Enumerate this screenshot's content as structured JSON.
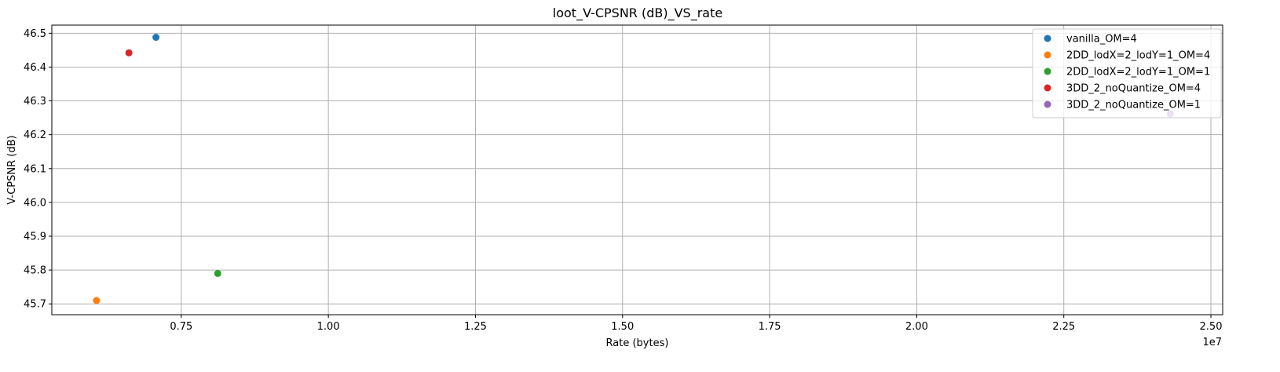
{
  "chart_data": {
    "type": "scatter",
    "title": "loot_V-CPSNR (dB)_VS_rate",
    "xlabel": "Rate (bytes)",
    "ylabel": "V-CPSNR (dB)",
    "x_offset_label": "1e7",
    "x_scale": 10000000,
    "xlim": [
      5300000,
      25200000
    ],
    "ylim": [
      45.668,
      46.524
    ],
    "x_ticks": [
      0.75,
      1.0,
      1.25,
      1.5,
      1.75,
      2.0,
      2.25,
      2.5
    ],
    "x_tick_labels": [
      "0.75",
      "1.00",
      "1.25",
      "1.50",
      "1.75",
      "2.00",
      "2.25",
      "2.50"
    ],
    "y_ticks": [
      45.7,
      45.8,
      45.9,
      46.0,
      46.1,
      46.2,
      46.3,
      46.4,
      46.5
    ],
    "y_tick_labels": [
      "45.7",
      "45.8",
      "45.9",
      "46.0",
      "46.1",
      "46.2",
      "46.3",
      "46.4",
      "46.5"
    ],
    "grid": true,
    "legend_position": "top-right",
    "series": [
      {
        "name": "vanilla_OM=4",
        "color": "#1f77b4",
        "points": [
          {
            "x": 7070000,
            "y": 46.488
          }
        ]
      },
      {
        "name": "2DD_lodX=2_lodY=1_OM=4",
        "color": "#ff7f0e",
        "points": [
          {
            "x": 6060000,
            "y": 45.71
          }
        ]
      },
      {
        "name": "2DD_lodX=2_lodY=1_OM=1",
        "color": "#2ca02c",
        "points": [
          {
            "x": 8120000,
            "y": 45.79
          }
        ]
      },
      {
        "name": "3DD_2_noQuantize_OM=4",
        "color": "#d62728",
        "points": [
          {
            "x": 6610000,
            "y": 46.442
          }
        ]
      },
      {
        "name": "3DD_2_noQuantize_OM=1",
        "color": "#9467bd",
        "points": [
          {
            "x": 24310000,
            "y": 46.262
          }
        ]
      }
    ]
  }
}
